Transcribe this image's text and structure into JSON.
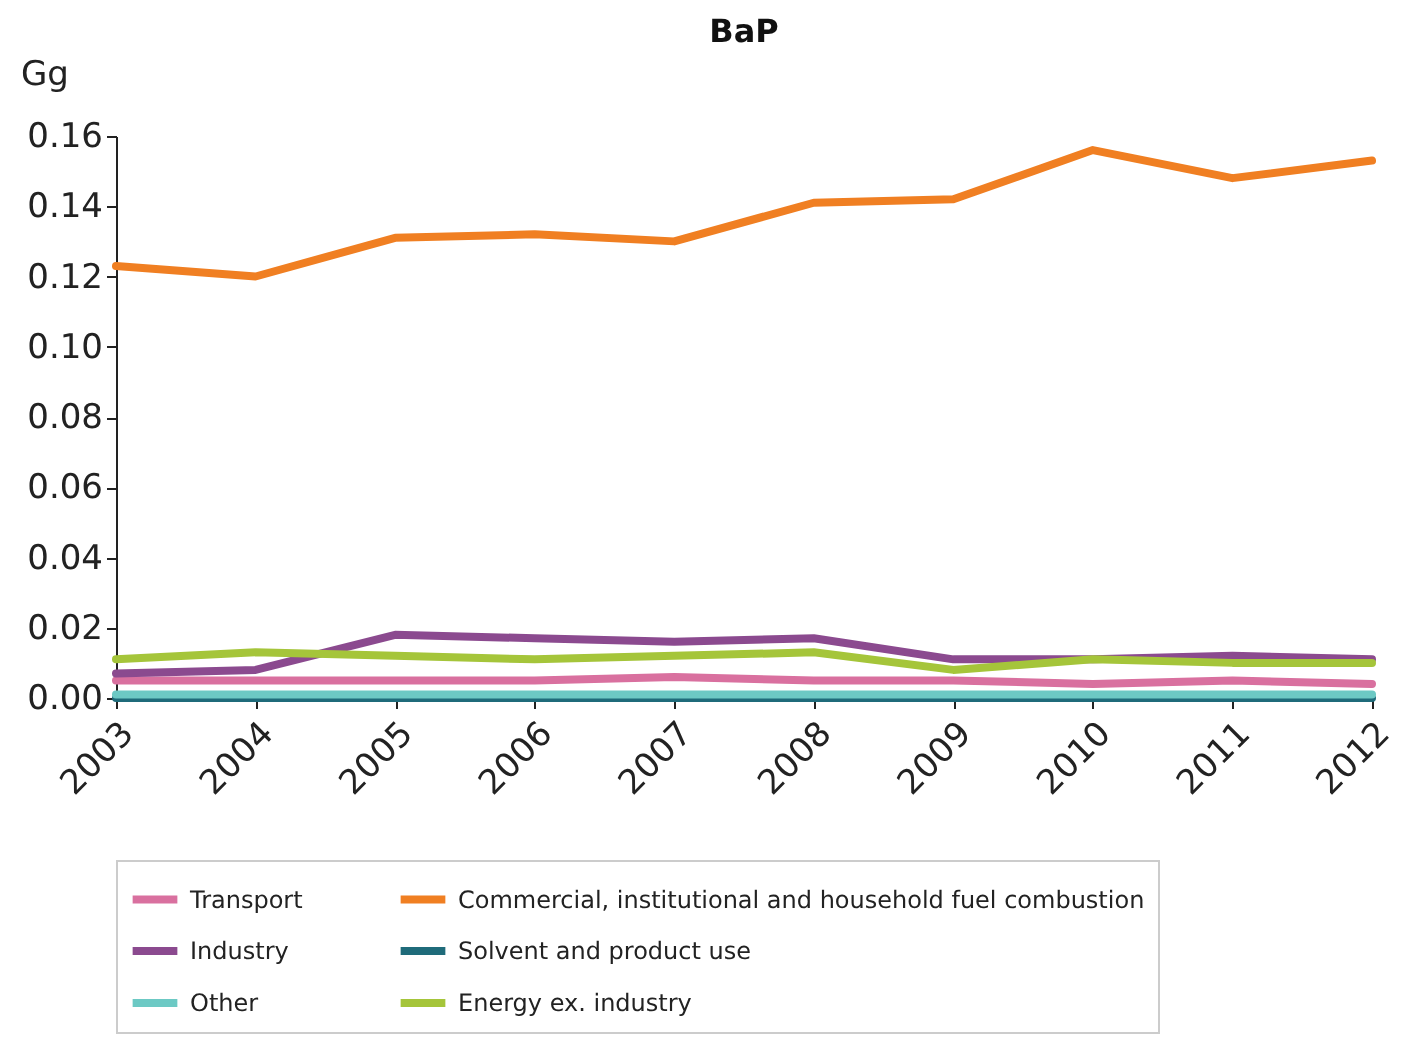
{
  "chart_data": {
    "type": "line",
    "title": "BaP",
    "ylabel": "Gg",
    "categories": [
      "2003",
      "2004",
      "2005",
      "2006",
      "2007",
      "2008",
      "2009",
      "2010",
      "2011",
      "2012"
    ],
    "series": [
      {
        "name": "Transport",
        "color": "#d9709f",
        "values": [
          0.005,
          0.005,
          0.005,
          0.005,
          0.006,
          0.005,
          0.005,
          0.004,
          0.005,
          0.004
        ]
      },
      {
        "name": "Commercial, institutional and household fuel combustion",
        "color": "#f07f22",
        "values": [
          0.123,
          0.12,
          0.131,
          0.132,
          0.13,
          0.141,
          0.142,
          0.156,
          0.148,
          0.153
        ]
      },
      {
        "name": "Industry",
        "color": "#8b4a8f",
        "values": [
          0.007,
          0.008,
          0.018,
          0.017,
          0.016,
          0.017,
          0.011,
          0.011,
          0.012,
          0.011
        ]
      },
      {
        "name": "Solvent and product use",
        "color": "#1f6b7a",
        "values": [
          0.0,
          0.0,
          0.0,
          0.0,
          0.0,
          0.0,
          0.0,
          0.0,
          0.0,
          0.0
        ]
      },
      {
        "name": "Other",
        "color": "#6cc9c4",
        "values": [
          0.001,
          0.001,
          0.001,
          0.001,
          0.001,
          0.001,
          0.001,
          0.001,
          0.001,
          0.001
        ]
      },
      {
        "name": "Energy ex. industry",
        "color": "#a5c53a",
        "values": [
          0.011,
          0.013,
          0.012,
          0.011,
          0.012,
          0.013,
          0.008,
          0.011,
          0.01,
          0.01
        ]
      }
    ],
    "ylim": [
      0,
      0.16
    ],
    "yticks": [
      {
        "value": 0,
        "label": "0.00"
      },
      {
        "value": 0.02,
        "label": "0.02"
      },
      {
        "value": 0.04,
        "label": "0.04"
      },
      {
        "value": 0.06,
        "label": "0.06"
      },
      {
        "value": 0.08,
        "label": "0.08"
      },
      {
        "value": 0.1,
        "label": "0.10"
      },
      {
        "value": 0.12,
        "label": "0.12"
      },
      {
        "value": 0.14,
        "label": "0.14"
      },
      {
        "value": 0.16,
        "label": "0.16"
      }
    ],
    "grid": false,
    "legend": "bottom",
    "marker": "none",
    "line_style": "solid"
  }
}
